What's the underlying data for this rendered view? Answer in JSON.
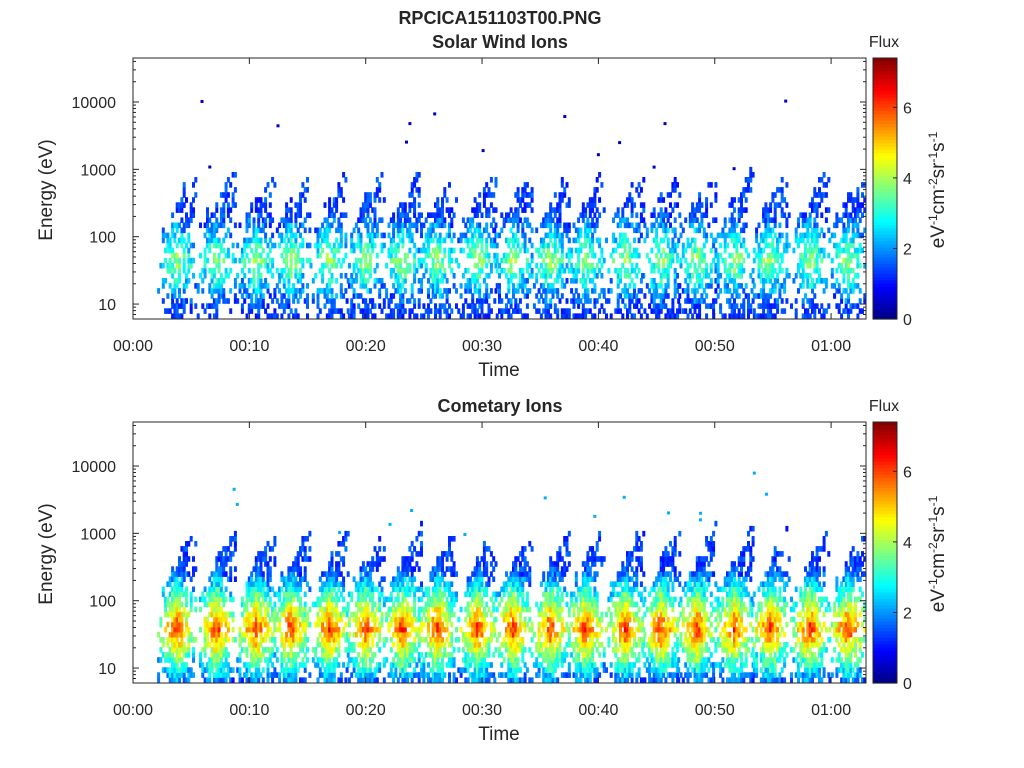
{
  "figure_title": "RPCICA151103T00.PNG",
  "chart_data": [
    {
      "type": "heatmap",
      "title": "Solar Wind Ions",
      "xlabel": "Time",
      "ylabel": "Energy (eV)",
      "x_range_minutes": [
        0,
        63
      ],
      "x_ticks": [
        "00:00",
        "00:10",
        "00:20",
        "00:30",
        "00:40",
        "00:50",
        "01:00"
      ],
      "y_scale": "log",
      "y_range_ev": [
        6,
        45000
      ],
      "y_ticks": [
        "10",
        "100",
        "1000",
        "10000"
      ],
      "colorbar": {
        "label": "Flux",
        "units_label": "eV-1cm-2sr-1s-1",
        "range": [
          0,
          7.4
        ],
        "ticks": [
          "0",
          "2",
          "4",
          "6"
        ],
        "colormap": "jet"
      },
      "burst_center_minutes": [
        3.8,
        7.2,
        10.6,
        13.6,
        16.9,
        20.0,
        23.2,
        26.2,
        29.6,
        32.7,
        35.9,
        38.9,
        42.3,
        45.4,
        48.5,
        51.7,
        54.8,
        58.2,
        61.5
      ],
      "peak_energy_ev": 40,
      "peak_flux": 4.0
    },
    {
      "type": "heatmap",
      "title": "Cometary Ions",
      "xlabel": "Time",
      "ylabel": "Energy (eV)",
      "x_range_minutes": [
        0,
        63
      ],
      "x_ticks": [
        "00:00",
        "00:10",
        "00:20",
        "00:30",
        "00:40",
        "00:50",
        "01:00"
      ],
      "y_scale": "log",
      "y_range_ev": [
        6,
        45000
      ],
      "y_ticks": [
        "10",
        "100",
        "1000",
        "10000"
      ],
      "colorbar": {
        "label": "Flux",
        "units_label": "eV-1cm-2sr-1s-1",
        "range": [
          0,
          7.4
        ],
        "ticks": [
          "0",
          "2",
          "4",
          "6"
        ],
        "colormap": "jet"
      },
      "burst_center_minutes": [
        3.8,
        7.2,
        10.6,
        13.6,
        16.9,
        20.0,
        23.2,
        26.2,
        29.6,
        32.7,
        35.9,
        38.9,
        42.3,
        45.4,
        48.5,
        51.7,
        54.8,
        58.2,
        61.5
      ],
      "peak_energy_ev": 35,
      "peak_flux": 6.2
    }
  ]
}
